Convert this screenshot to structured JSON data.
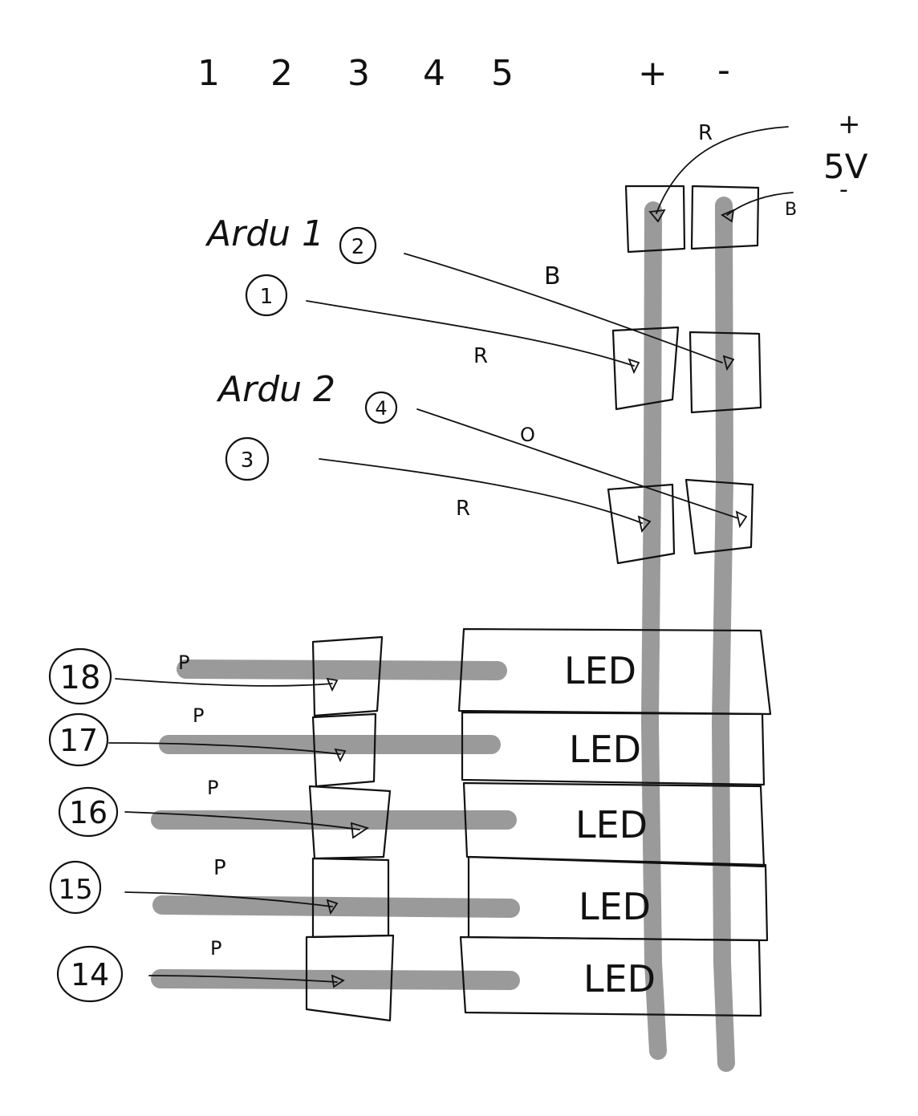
{
  "top_labels": [
    "1",
    "2",
    "3",
    "4",
    "5",
    "+",
    "-"
  ],
  "power": {
    "plus": "+",
    "voltage": "5V",
    "minus": "-"
  },
  "wire_letters": {
    "r_top": "R",
    "b_top": "B",
    "b_mid": "B",
    "r_mid": "R",
    "o_mid": "O",
    "r_low": "R"
  },
  "groups": [
    {
      "label": "Ardu 1",
      "pins": [
        "2",
        "1"
      ]
    },
    {
      "label": "Ardu 2",
      "pins": [
        "4",
        "3"
      ]
    }
  ],
  "pin_rows": [
    {
      "pin": "18",
      "wire": "P",
      "led": "LED"
    },
    {
      "pin": "17",
      "wire": "P",
      "led": "LED"
    },
    {
      "pin": "16",
      "wire": "P",
      "led": "LED"
    },
    {
      "pin": "15",
      "wire": "P",
      "led": "LED"
    },
    {
      "pin": "14",
      "wire": "P",
      "led": "LED"
    }
  ]
}
